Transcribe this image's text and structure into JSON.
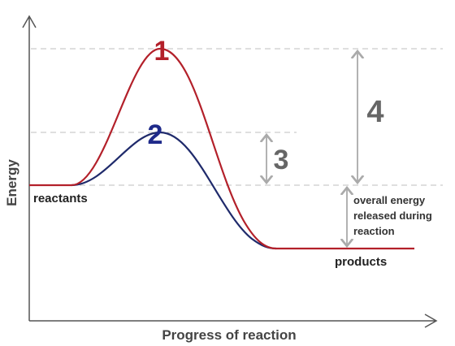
{
  "axes": {
    "y_label": "Energy",
    "x_label": "Progress of reaction"
  },
  "curves": {
    "uncatalyzed": "1",
    "catalyzed": "2"
  },
  "arrows": {
    "catalyzed_activation": "3",
    "uncatalyzed_activation": "4",
    "energy_released": [
      "overall energy",
      "released during",
      "reaction"
    ]
  },
  "levels": {
    "reactants": "reactants",
    "products": "products"
  }
}
